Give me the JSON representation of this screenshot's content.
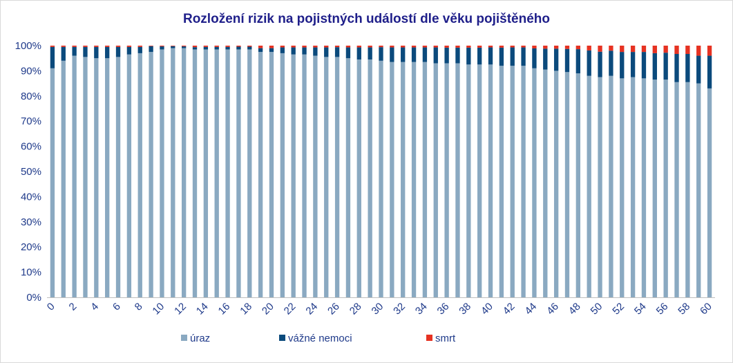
{
  "chart_data": {
    "type": "bar",
    "stacked": true,
    "title": "Rozložení rizik na pojistných událostí dle věku pojištěného",
    "xlabel": "",
    "ylabel": "",
    "ylim": [
      0,
      100
    ],
    "y_ticks": [
      "0%",
      "10%",
      "20%",
      "30%",
      "40%",
      "50%",
      "60%",
      "70%",
      "80%",
      "90%",
      "100%"
    ],
    "x_tick_labels": [
      "0",
      "2",
      "4",
      "6",
      "8",
      "10",
      "12",
      "14",
      "16",
      "18",
      "20",
      "22",
      "24",
      "26",
      "28",
      "30",
      "32",
      "34",
      "36",
      "38",
      "40",
      "42",
      "44",
      "46",
      "48",
      "50",
      "52",
      "54",
      "56",
      "58",
      "60"
    ],
    "categories": [
      "0",
      "1",
      "2",
      "3",
      "4",
      "5",
      "6",
      "7",
      "8",
      "9",
      "10",
      "11",
      "12",
      "13",
      "14",
      "15",
      "16",
      "17",
      "18",
      "19",
      "20",
      "21",
      "22",
      "23",
      "24",
      "25",
      "26",
      "27",
      "28",
      "29",
      "30",
      "31",
      "32",
      "33",
      "34",
      "35",
      "36",
      "37",
      "38",
      "39",
      "40",
      "41",
      "42",
      "43",
      "44",
      "45",
      "46",
      "47",
      "48",
      "49",
      "50",
      "51",
      "52",
      "53",
      "54",
      "55",
      "56",
      "57",
      "58",
      "59",
      "60"
    ],
    "grid": false,
    "legend_position": "bottom",
    "series": [
      {
        "name": "úraz",
        "color": "#8aa9c1",
        "values": [
          91,
          94,
          96,
          95.5,
          95,
          95,
          95.5,
          96.5,
          97,
          97.5,
          98.5,
          99,
          99,
          98.5,
          98.5,
          98.5,
          98.5,
          98.5,
          98.5,
          97.5,
          97.5,
          97,
          96.5,
          96.5,
          96,
          95.5,
          95.5,
          95,
          94.5,
          94.5,
          94,
          93.5,
          93.5,
          93.5,
          93.5,
          93,
          93,
          93,
          92.5,
          92.5,
          92.5,
          92,
          92,
          92,
          91,
          90.5,
          90,
          89.5,
          89,
          88,
          87.5,
          88,
          87,
          87.5,
          87,
          86.5,
          86.5,
          85.5,
          85.5,
          85,
          83
        ]
      },
      {
        "name": "vážné nemoci",
        "color": "#0b4a7c",
        "values": [
          8.5,
          5.5,
          3.5,
          4,
          4.5,
          4.5,
          4,
          3,
          2.5,
          2.3,
          1.2,
          0.8,
          0.7,
          0.9,
          1,
          1,
          1,
          1.1,
          1.1,
          1.5,
          1.5,
          2.3,
          2.8,
          2.8,
          3.3,
          3.8,
          3.9,
          4.3,
          4.8,
          4.8,
          5.4,
          5.8,
          5.8,
          5.8,
          5.8,
          6.3,
          6.2,
          6.2,
          6.7,
          6.7,
          6.8,
          7.2,
          7.3,
          7.3,
          7.9,
          8.3,
          8.8,
          9.2,
          9.6,
          10.1,
          10.1,
          10,
          10.5,
          10,
          10.5,
          10.5,
          10.7,
          11.2,
          11.2,
          11,
          13
        ]
      },
      {
        "name": "smrt",
        "color": "#e63222",
        "values": [
          0.5,
          0.5,
          0.5,
          0.5,
          0.5,
          0.5,
          0.5,
          0.5,
          0.5,
          0.2,
          0.3,
          0.2,
          0.3,
          0.6,
          0.5,
          0.5,
          0.5,
          0.4,
          0.4,
          1,
          1,
          0.7,
          0.7,
          0.7,
          0.7,
          0.7,
          0.6,
          0.7,
          0.7,
          0.7,
          0.6,
          0.7,
          0.7,
          0.7,
          0.7,
          0.7,
          0.8,
          0.8,
          0.8,
          0.8,
          0.7,
          0.8,
          0.7,
          0.7,
          1.1,
          1.2,
          1.2,
          1.3,
          1.4,
          1.9,
          2.4,
          2,
          2.5,
          2.5,
          2.5,
          3,
          2.8,
          3.3,
          3.3,
          4,
          4
        ]
      }
    ]
  }
}
